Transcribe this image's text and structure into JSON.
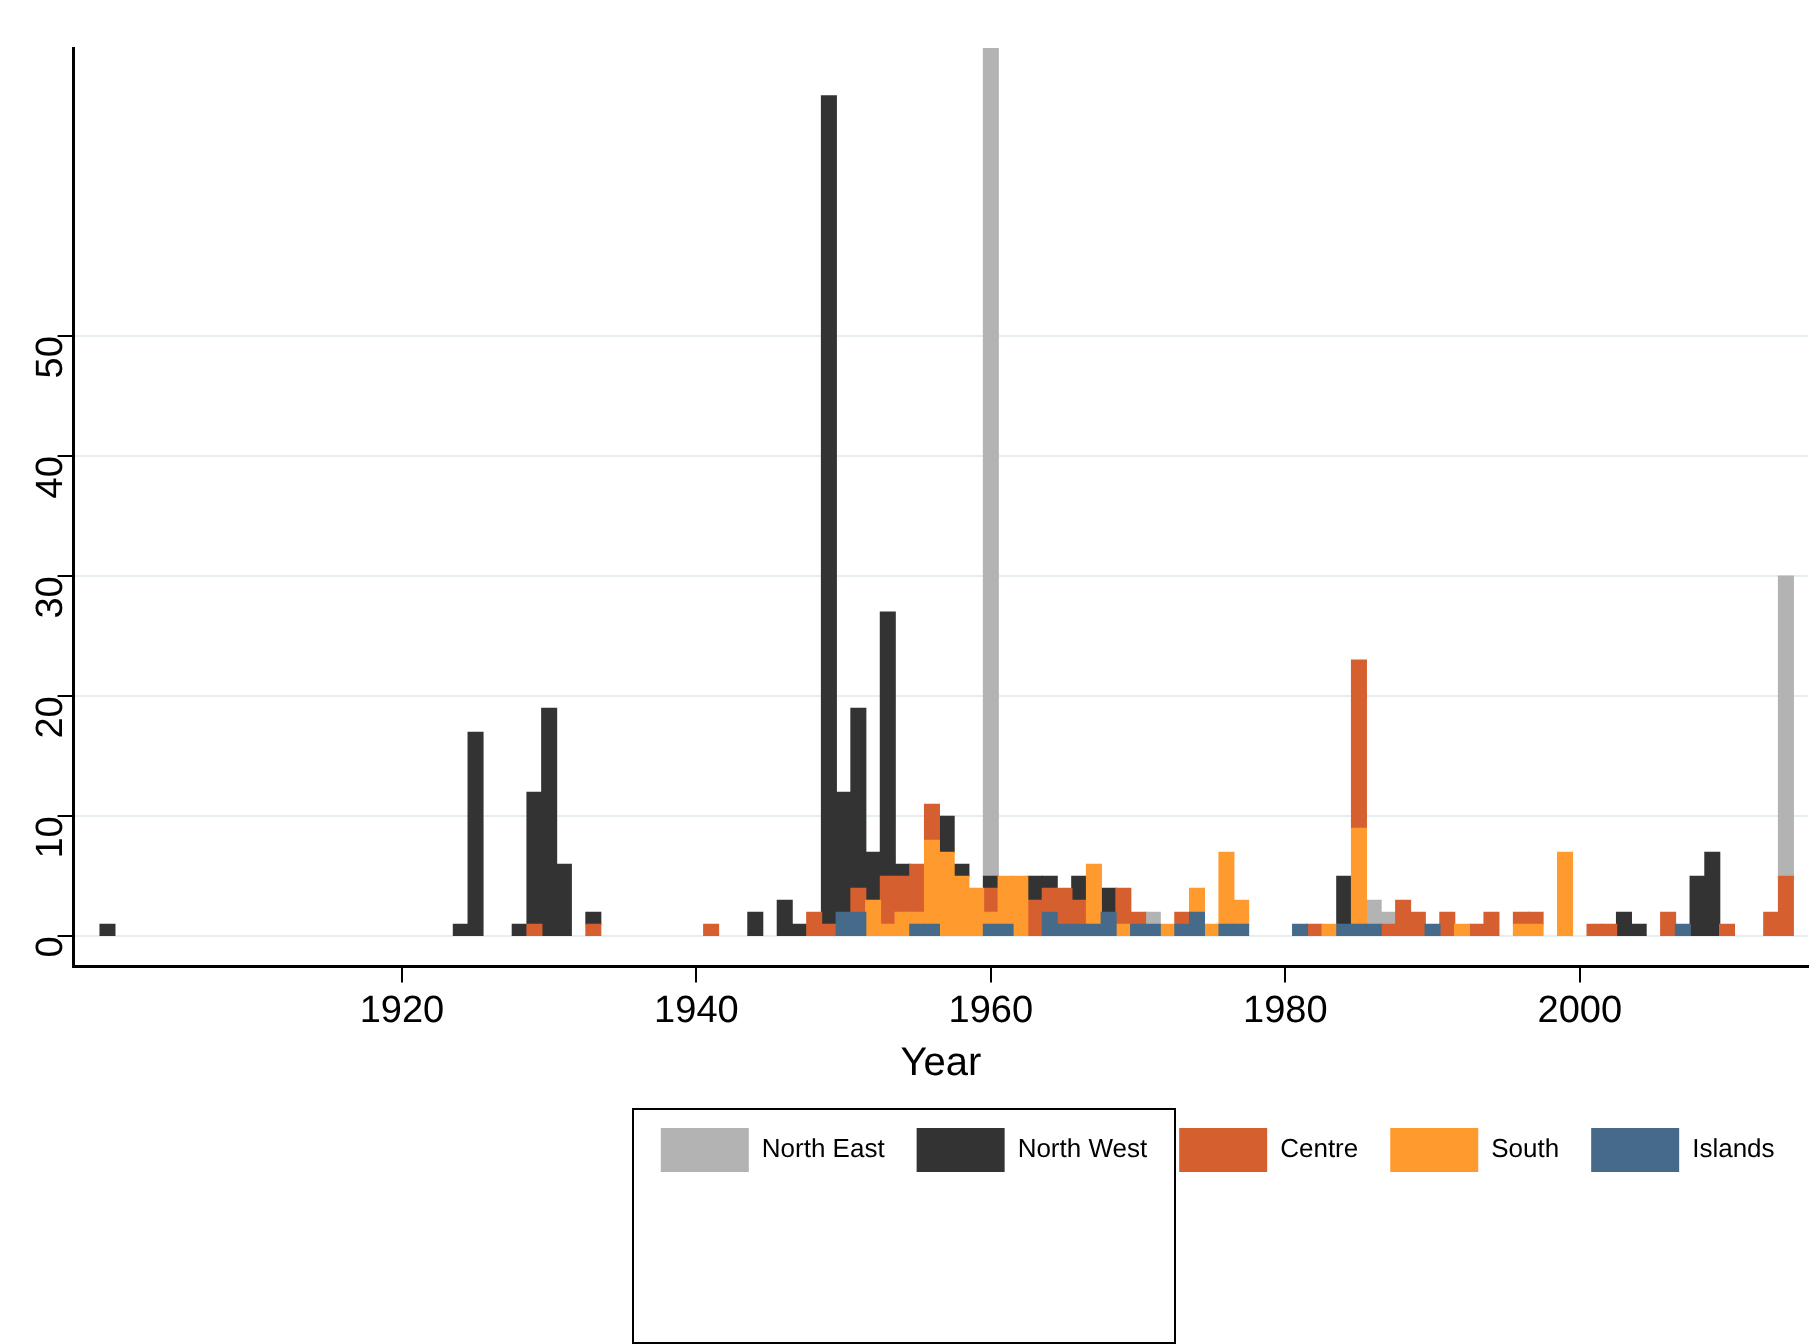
{
  "chart_data": {
    "type": "bar",
    "stacked": true,
    "xlabel": "Year",
    "xlim": [
      1897.7,
      2015.5
    ],
    "xticks": [
      1920,
      1940,
      1960,
      1980,
      2000
    ],
    "ylim": [
      -2.5,
      74
    ],
    "yticks": [
      0,
      10,
      20,
      30,
      40,
      50
    ],
    "grid": "y",
    "legend": "bottom",
    "x": [
      1900,
      1924,
      1925,
      1928,
      1929,
      1930,
      1931,
      1933,
      1941,
      1944,
      1946,
      1947,
      1948,
      1949,
      1950,
      1951,
      1952,
      1953,
      1954,
      1955,
      1956,
      1957,
      1958,
      1959,
      1960,
      1961,
      1962,
      1963,
      1964,
      1965,
      1966,
      1967,
      1968,
      1969,
      1970,
      1971,
      1972,
      1973,
      1974,
      1975,
      1976,
      1977,
      1981,
      1982,
      1983,
      1984,
      1985,
      1986,
      1987,
      1988,
      1989,
      1990,
      1991,
      1992,
      1993,
      1994,
      1996,
      1997,
      1999,
      2001,
      2002,
      2003,
      2004,
      2006,
      2007,
      2008,
      2009,
      2010,
      2013,
      2014
    ],
    "series": [
      {
        "name": "Islands",
        "color": "#466b8a",
        "values": [
          null,
          null,
          null,
          null,
          null,
          null,
          null,
          null,
          null,
          null,
          null,
          null,
          null,
          null,
          2,
          2,
          null,
          null,
          null,
          1,
          1,
          null,
          null,
          null,
          1,
          1,
          null,
          null,
          2,
          1,
          1,
          1,
          2,
          null,
          1,
          1,
          null,
          1,
          2,
          null,
          1,
          1,
          1,
          null,
          null,
          1,
          1,
          1,
          null,
          null,
          null,
          1,
          null,
          null,
          null,
          null,
          null,
          null,
          null,
          null,
          null,
          null,
          null,
          null,
          1,
          null,
          null,
          null,
          null,
          null
        ]
      },
      {
        "name": "South",
        "color": "#ff9a2e",
        "values": [
          null,
          null,
          null,
          null,
          null,
          null,
          null,
          null,
          null,
          null,
          null,
          null,
          null,
          null,
          null,
          null,
          3,
          1,
          2,
          1,
          7,
          7,
          5,
          4,
          1,
          4,
          5,
          null,
          null,
          null,
          null,
          5,
          null,
          1,
          null,
          null,
          1,
          null,
          2,
          1,
          6,
          2,
          null,
          null,
          1,
          null,
          8,
          null,
          null,
          null,
          null,
          null,
          null,
          1,
          null,
          null,
          1,
          1,
          7,
          null,
          null,
          null,
          null,
          null,
          null,
          null,
          null,
          null,
          null,
          null
        ]
      },
      {
        "name": "Centre",
        "color": "#d65f30",
        "values": [
          null,
          null,
          null,
          null,
          1,
          null,
          null,
          1,
          1,
          null,
          null,
          null,
          2,
          1,
          null,
          2,
          null,
          4,
          3,
          4,
          3,
          null,
          null,
          null,
          2,
          null,
          null,
          3,
          2,
          3,
          2,
          null,
          null,
          3,
          1,
          null,
          null,
          1,
          null,
          null,
          null,
          null,
          null,
          1,
          null,
          null,
          14,
          null,
          1,
          3,
          2,
          null,
          2,
          null,
          1,
          2,
          1,
          1,
          null,
          1,
          1,
          null,
          null,
          2,
          null,
          null,
          null,
          1,
          2,
          5
        ]
      },
      {
        "name": "North West",
        "color": "#333333",
        "values": [
          1,
          1,
          17,
          1,
          11,
          19,
          6,
          1,
          null,
          2,
          3,
          1,
          null,
          69,
          10,
          15,
          4,
          22,
          1,
          null,
          null,
          3,
          1,
          null,
          1,
          null,
          null,
          2,
          1,
          null,
          2,
          null,
          2,
          null,
          null,
          null,
          null,
          null,
          null,
          null,
          null,
          null,
          null,
          null,
          null,
          4,
          null,
          null,
          null,
          null,
          null,
          null,
          null,
          null,
          null,
          null,
          null,
          null,
          null,
          null,
          null,
          2,
          1,
          null,
          null,
          5,
          7,
          null,
          null,
          null
        ]
      },
      {
        "name": "North East",
        "color": "#b3b3b3",
        "values": [
          null,
          null,
          null,
          null,
          null,
          null,
          null,
          null,
          null,
          null,
          null,
          null,
          null,
          null,
          null,
          null,
          null,
          null,
          null,
          null,
          null,
          null,
          null,
          null,
          69,
          null,
          null,
          null,
          null,
          null,
          null,
          null,
          null,
          null,
          null,
          1,
          null,
          null,
          null,
          null,
          null,
          null,
          null,
          null,
          null,
          null,
          null,
          2,
          1,
          null,
          null,
          null,
          null,
          null,
          null,
          null,
          null,
          null,
          null,
          null,
          null,
          null,
          null,
          null,
          null,
          null,
          null,
          null,
          null,
          25
        ]
      }
    ]
  }
}
